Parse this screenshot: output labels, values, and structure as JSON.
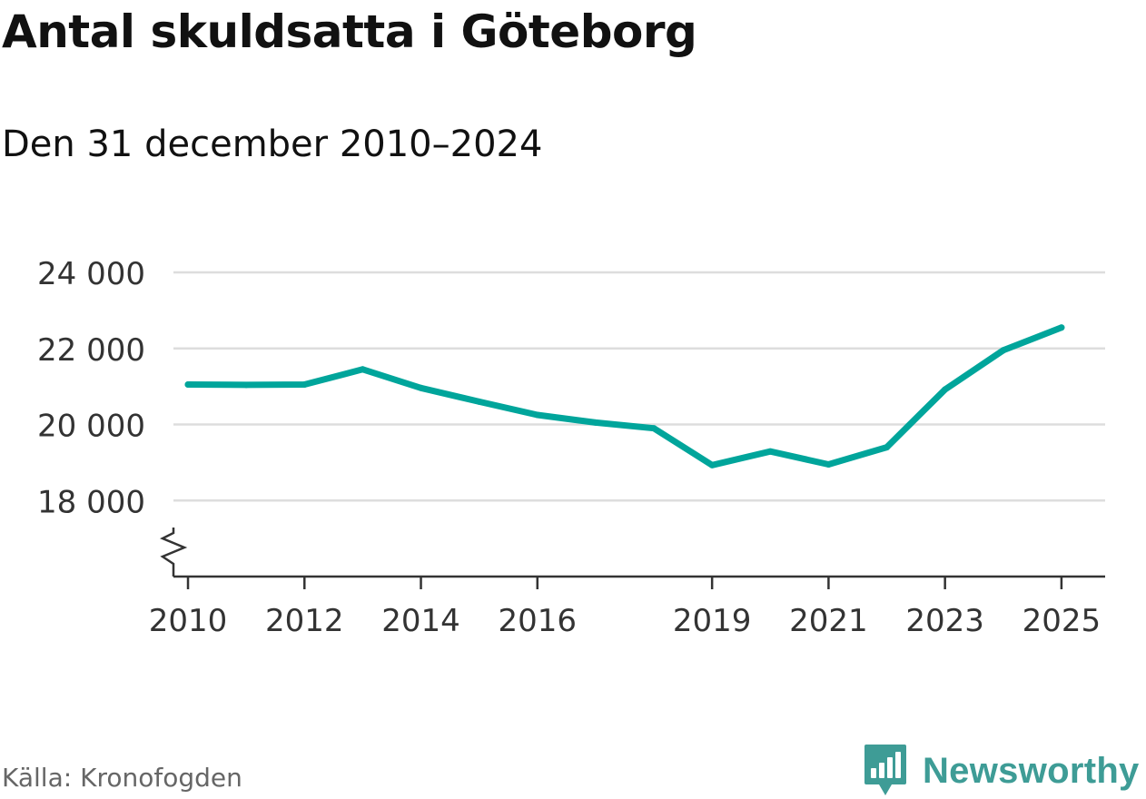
{
  "chart_data": {
    "type": "line",
    "title": "Antal skuldsatta i Göteborg",
    "subtitle": "Den 31 december 2010–2024",
    "xlabel": "",
    "ylabel": "",
    "x_ticks": [
      2010,
      2012,
      2014,
      2016,
      2019,
      2021,
      2023,
      2025
    ],
    "x_tick_labels": [
      "2010",
      "2012",
      "2014",
      "2016",
      "2019",
      "2021",
      "2023",
      "2025"
    ],
    "y_ticks": [
      18000,
      20000,
      22000,
      24000
    ],
    "y_tick_labels": [
      "18 000",
      "20 000",
      "22 000",
      "24 000"
    ],
    "xlim": [
      2009.75,
      2025.75
    ],
    "ylim": [
      16000,
      24000
    ],
    "axis_break": true,
    "grid": true,
    "series": [
      {
        "name": "Antal skuldsatta",
        "color": "#00a59b",
        "x": [
          2010,
          2011,
          2012,
          2013,
          2014,
          2015,
          2016,
          2017,
          2018,
          2019,
          2020,
          2021,
          2022,
          2023,
          2024,
          2025
        ],
        "values": [
          21050,
          21040,
          21050,
          21450,
          20960,
          20600,
          20250,
          20050,
          19900,
          18930,
          19290,
          18950,
          19400,
          20920,
          21950,
          22550
        ]
      }
    ]
  },
  "footer": {
    "source": "Källa: Kronofogden",
    "brand": "Newsworthy"
  },
  "colors": {
    "line": "#00a59b",
    "brand": "#3e9c96",
    "grid": "#dddddd",
    "axis": "#333333"
  }
}
